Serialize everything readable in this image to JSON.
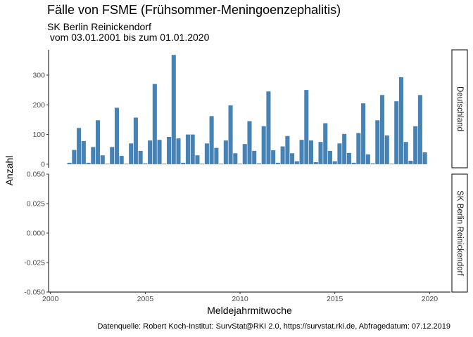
{
  "chart_data": {
    "type": "bar",
    "title": "Fälle von FSME (Frühsommer-Meningoenzephalitis)",
    "subtitle_line1": "SK Berlin Reinickendorf",
    "subtitle_line2": " vom 03.01.2001 bis zum 01.01.2020",
    "caption": "Datenquelle: Robert Koch-Institut: SurvStat@RKI 2.0, https://survstat.rki.de, Abfragedatum: 07.12.2019",
    "xlabel": "Meldejahrmitwoche",
    "ylabel": "Anzahl",
    "x_ticks": [
      2000,
      2005,
      2010,
      2015,
      2020
    ],
    "xlim": [
      1999.9,
      2021.1
    ],
    "color": "#4682b4",
    "grid": false,
    "panels": [
      {
        "name": "Deutschland",
        "ylim": [
          -12,
          385
        ],
        "y_ticks": [
          0,
          100,
          200,
          300
        ],
        "x": [
          2001.0,
          2001.25,
          2001.5,
          2001.75,
          2002.0,
          2002.25,
          2002.5,
          2002.75,
          2003.0,
          2003.25,
          2003.5,
          2003.75,
          2004.0,
          2004.25,
          2004.5,
          2004.75,
          2005.0,
          2005.25,
          2005.5,
          2005.75,
          2006.0,
          2006.25,
          2006.5,
          2006.75,
          2007.0,
          2007.25,
          2007.5,
          2007.75,
          2008.0,
          2008.25,
          2008.5,
          2008.75,
          2009.0,
          2009.25,
          2009.5,
          2009.75,
          2010.0,
          2010.25,
          2010.5,
          2010.75,
          2011.0,
          2011.25,
          2011.5,
          2011.75,
          2012.0,
          2012.25,
          2012.5,
          2012.75,
          2013.0,
          2013.25,
          2013.5,
          2013.75,
          2014.0,
          2014.25,
          2014.5,
          2014.75,
          2015.0,
          2015.25,
          2015.5,
          2015.75,
          2016.0,
          2016.25,
          2016.5,
          2016.75,
          2017.0,
          2017.25,
          2017.5,
          2017.75,
          2018.0,
          2018.25,
          2018.5,
          2018.75,
          2019.0,
          2019.25,
          2019.5,
          2019.75
        ],
        "values": [
          5,
          48,
          122,
          78,
          5,
          58,
          148,
          30,
          2,
          58,
          190,
          28,
          2,
          70,
          157,
          45,
          3,
          80,
          270,
          82,
          2,
          92,
          368,
          87,
          5,
          100,
          100,
          30,
          2,
          70,
          162,
          55,
          2,
          80,
          198,
          37,
          2,
          68,
          145,
          45,
          3,
          128,
          245,
          47,
          5,
          60,
          95,
          37,
          10,
          82,
          250,
          80,
          7,
          75,
          138,
          45,
          10,
          70,
          102,
          38,
          5,
          105,
          205,
          33,
          3,
          148,
          233,
          97,
          2,
          212,
          293,
          75,
          12,
          128,
          233,
          40
        ]
      },
      {
        "name": "SK Berlin Reinickendorf",
        "ylim": [
          -0.05,
          0.05
        ],
        "y_ticks": [
          -0.05,
          -0.025,
          0.0,
          0.025,
          0.05
        ],
        "y_tick_labels": [
          "-0.050",
          "-0.025",
          "0.000",
          "0.025",
          "0.050"
        ],
        "x": [],
        "values": []
      }
    ]
  }
}
